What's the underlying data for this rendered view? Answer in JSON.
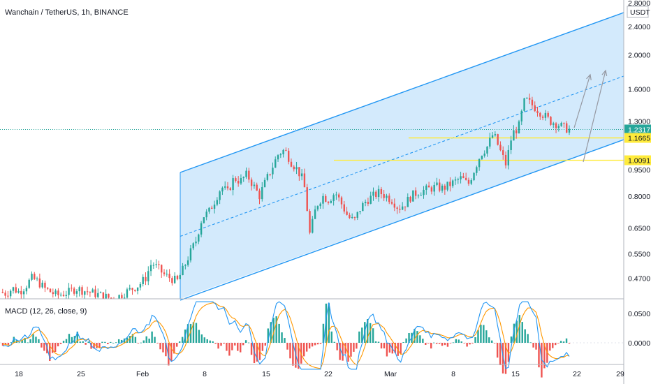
{
  "header": {
    "title": "Wanchain / TetherUS, 1h, BINANCE",
    "currency": "USDT"
  },
  "indicator": {
    "label": "MACD (12, 26, close, 9)"
  },
  "chart_data": [
    {
      "type": "candlestick",
      "title": "Wanchain / TetherUS, 1h, BINANCE",
      "y_scale": "log",
      "y_ticks": [
        "2.8000",
        "2.4000",
        "2.0000",
        "1.6000",
        "1.3000",
        "0.9500",
        "0.8000",
        "0.6500",
        "0.5500",
        "0.4700"
      ],
      "x_ticks": [
        "18",
        "25",
        "Feb",
        "8",
        "15",
        "22",
        "Mar",
        "8",
        "15",
        "22",
        "29"
      ],
      "price_labels": [
        {
          "value": "1.2317",
          "sub": "36:24",
          "color": "#26a69a"
        },
        {
          "value": "1.1665",
          "color": "#ffeb3b"
        },
        {
          "value": "1.0091",
          "color": "#ffeb3b"
        }
      ],
      "colors": {
        "up": "#26a69a",
        "down": "#ef5350",
        "channel": "#2196f3",
        "channel_fill": "#bbdefb",
        "level": "#ffeb3b",
        "arrow": "#9598a1"
      },
      "closes": [
        0.43,
        0.425,
        0.44,
        0.43,
        0.445,
        0.47,
        0.46,
        0.44,
        0.43,
        0.42,
        0.425,
        0.43,
        0.44,
        0.435,
        0.43,
        0.425,
        0.42,
        0.415,
        0.41,
        0.42,
        0.43,
        0.44,
        0.45,
        0.47,
        0.52,
        0.5,
        0.48,
        0.47,
        0.46,
        0.5,
        0.55,
        0.6,
        0.7,
        0.72,
        0.78,
        0.85,
        0.82,
        0.9,
        0.88,
        0.92,
        0.86,
        0.8,
        0.88,
        0.96,
        1.05,
        1.08,
        1.0,
        0.95,
        0.88,
        0.62,
        0.75,
        0.8,
        0.78,
        0.82,
        0.76,
        0.7,
        0.68,
        0.74,
        0.78,
        0.8,
        0.82,
        0.8,
        0.78,
        0.74,
        0.76,
        0.8,
        0.82,
        0.83,
        0.84,
        0.85,
        0.84,
        0.86,
        0.88,
        0.9,
        0.86,
        0.95,
        1.05,
        1.1,
        1.2,
        1.08,
        0.98,
        1.2,
        1.25,
        1.5,
        1.45,
        1.4,
        1.35,
        1.3,
        1.28,
        1.25,
        1.2317
      ]
    },
    {
      "type": "bar",
      "title": "MACD (12, 26, close, 9)",
      "y_ticks": [
        "0.0500",
        "0.0000"
      ],
      "x_ticks": [
        "18",
        "25",
        "Feb",
        "8",
        "15",
        "22",
        "Mar",
        "8",
        "15",
        "22",
        "29"
      ],
      "colors": {
        "histogram_up": "#26a69a",
        "histogram_down": "#ef5350",
        "macd": "#2196f3",
        "signal": "#ff9800"
      }
    }
  ]
}
